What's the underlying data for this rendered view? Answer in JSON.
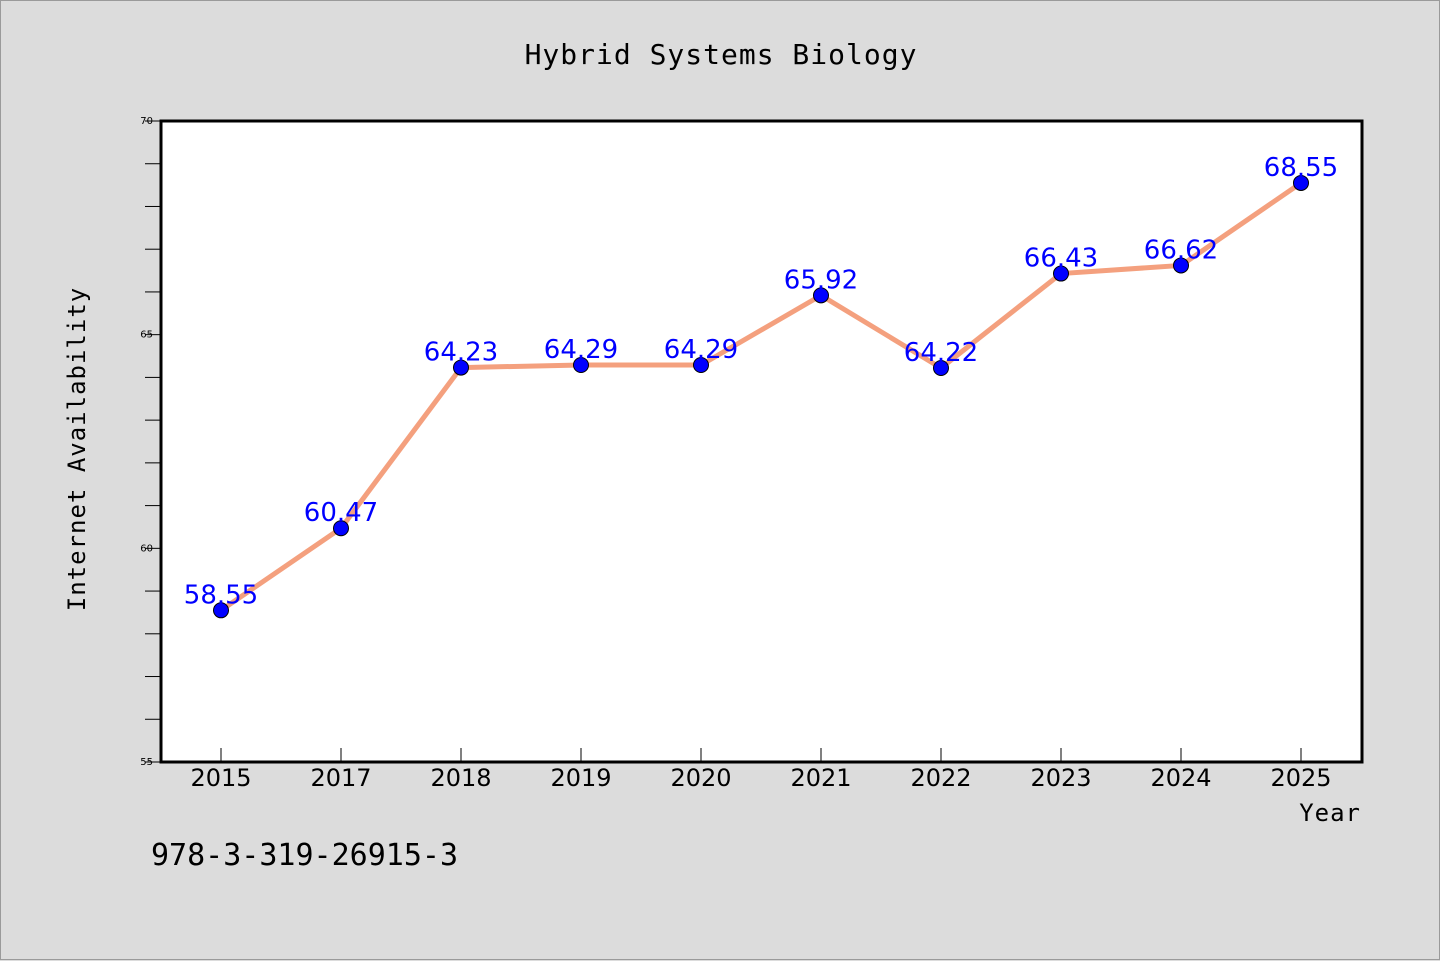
{
  "chart_data": {
    "type": "line",
    "title": "Hybrid Systems Biology",
    "xlabel": "Year",
    "ylabel": "Internet Availability",
    "categories": [
      "2015",
      "2017",
      "2018",
      "2019",
      "2020",
      "2021",
      "2022",
      "2023",
      "2024",
      "2025"
    ],
    "values": [
      58.55,
      60.47,
      64.23,
      64.29,
      64.29,
      65.92,
      64.22,
      66.43,
      66.62,
      68.55
    ],
    "data_labels": [
      "58.55",
      "60.47",
      "64.23",
      "64.29",
      "64.29",
      "65.92",
      "64.22",
      "66.43",
      "66.62",
      "68.55"
    ],
    "ylim": [
      55,
      70
    ],
    "yticks": [
      "55",
      "60",
      "65",
      "70"
    ],
    "grid": false,
    "line_color": "#f4a07e",
    "marker_color": "#0000ff",
    "label_color": "#0000ff"
  },
  "footer": {
    "isbn": "978-3-319-26915-3"
  }
}
